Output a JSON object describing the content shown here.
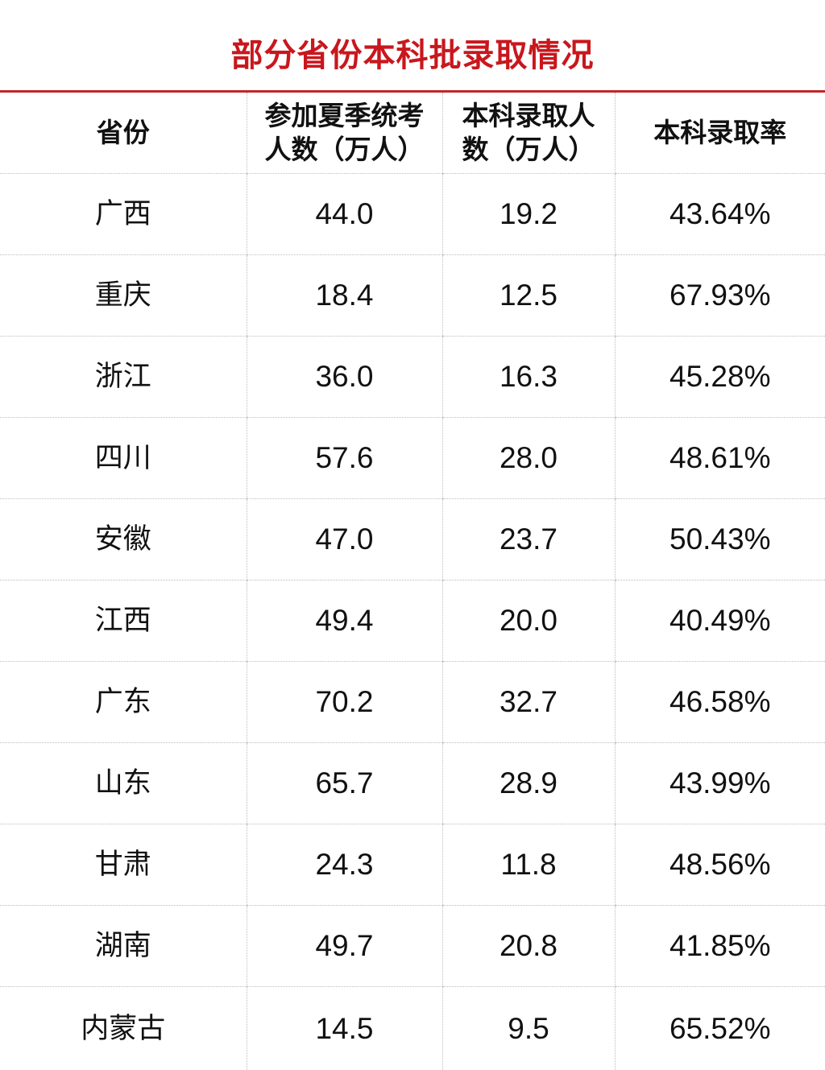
{
  "title": "部分省份本科批录取情况",
  "table": {
    "headers": [
      "省份",
      "参加夏季统考\n人数（万人）",
      "本科录取人\n数（万人）",
      "本科录取率"
    ],
    "rows": [
      [
        "广西",
        "44.0",
        "19.2",
        "43.64%"
      ],
      [
        "重庆",
        "18.4",
        "12.5",
        "67.93%"
      ],
      [
        "浙江",
        "36.0",
        "16.3",
        "45.28%"
      ],
      [
        "四川",
        "57.6",
        "28.0",
        "48.61%"
      ],
      [
        "安徽",
        "47.0",
        "23.7",
        "50.43%"
      ],
      [
        "江西",
        "49.4",
        "20.0",
        "40.49%"
      ],
      [
        "广东",
        "70.2",
        "32.7",
        "46.58%"
      ],
      [
        "山东",
        "65.7",
        "28.9",
        "43.99%"
      ],
      [
        "甘肃",
        "24.3",
        "11.8",
        "48.56%"
      ],
      [
        "湖南",
        "49.7",
        "20.8",
        "41.85%"
      ],
      [
        "内蒙古",
        "14.5",
        "9.5",
        "65.52%"
      ]
    ]
  },
  "colors": {
    "title": "#c8171d",
    "rule": "#c0262a",
    "grid": "#bdbdbd"
  }
}
